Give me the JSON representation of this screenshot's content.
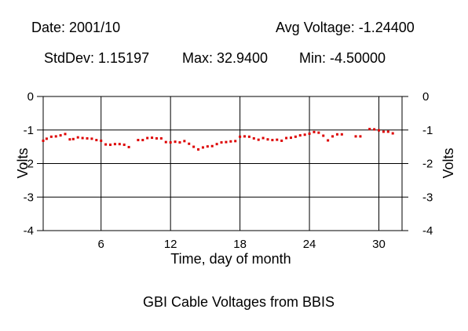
{
  "header": {
    "date": "Date: 2001/10",
    "avg_voltage": "Avg Voltage: -1.24400",
    "stddev": "StdDev: 1.15197",
    "max": "Max: 32.9400",
    "min": "Min: -4.50000"
  },
  "footer_title": "GBI Cable Voltages from BBIS",
  "chart_data": {
    "type": "scatter",
    "title": "",
    "xlabel": "Time, day of month",
    "ylabel": "Volts",
    "ylabel_right": "Volts",
    "xlim": [
      1,
      32
    ],
    "ylim": [
      -4,
      0
    ],
    "x_ticks": [
      6,
      12,
      18,
      24,
      30
    ],
    "y_ticks": [
      0,
      -1,
      -2,
      -3,
      -4
    ],
    "grid": true,
    "marker_color": "#dd0000",
    "series": [
      {
        "x": [
          1.0,
          1.3,
          1.7,
          2.1,
          2.5,
          2.9,
          3.3,
          3.6,
          4.0,
          4.4,
          4.8,
          5.2,
          5.6,
          6.0,
          6.4,
          6.8,
          7.2,
          7.6,
          8.0,
          8.4,
          9.2,
          9.6,
          10.0,
          10.4,
          10.8,
          11.2,
          11.6,
          12.0,
          12.4,
          12.8,
          13.2,
          13.6,
          14.0,
          14.4,
          14.8,
          15.2,
          15.6,
          16.0,
          16.4,
          16.8,
          17.2,
          17.6,
          18.0,
          18.4,
          18.8,
          19.2,
          19.6,
          20.0,
          20.4,
          20.8,
          21.2,
          21.6,
          22.0,
          22.4,
          22.8,
          23.2,
          23.6,
          24.0,
          24.4,
          24.8,
          25.2,
          25.6,
          26.0,
          26.4,
          26.8,
          28.0,
          28.4,
          29.2,
          29.6,
          30.0,
          30.4,
          30.8,
          31.2
        ],
        "y": [
          -1.32,
          -1.26,
          -1.2,
          -1.19,
          -1.16,
          -1.12,
          -1.28,
          -1.27,
          -1.22,
          -1.24,
          -1.25,
          -1.26,
          -1.3,
          -1.32,
          -1.43,
          -1.44,
          -1.42,
          -1.42,
          -1.44,
          -1.51,
          -1.3,
          -1.3,
          -1.24,
          -1.23,
          -1.25,
          -1.25,
          -1.36,
          -1.37,
          -1.35,
          -1.37,
          -1.33,
          -1.41,
          -1.5,
          -1.58,
          -1.52,
          -1.49,
          -1.48,
          -1.42,
          -1.37,
          -1.36,
          -1.34,
          -1.33,
          -1.2,
          -1.19,
          -1.2,
          -1.25,
          -1.29,
          -1.24,
          -1.28,
          -1.3,
          -1.29,
          -1.32,
          -1.24,
          -1.23,
          -1.2,
          -1.16,
          -1.14,
          -1.11,
          -1.06,
          -1.08,
          -1.17,
          -1.31,
          -1.19,
          -1.13,
          -1.13,
          -1.19,
          -1.19,
          -0.97,
          -0.98,
          -1.01,
          -1.05,
          -1.05,
          -1.1
        ]
      }
    ]
  }
}
